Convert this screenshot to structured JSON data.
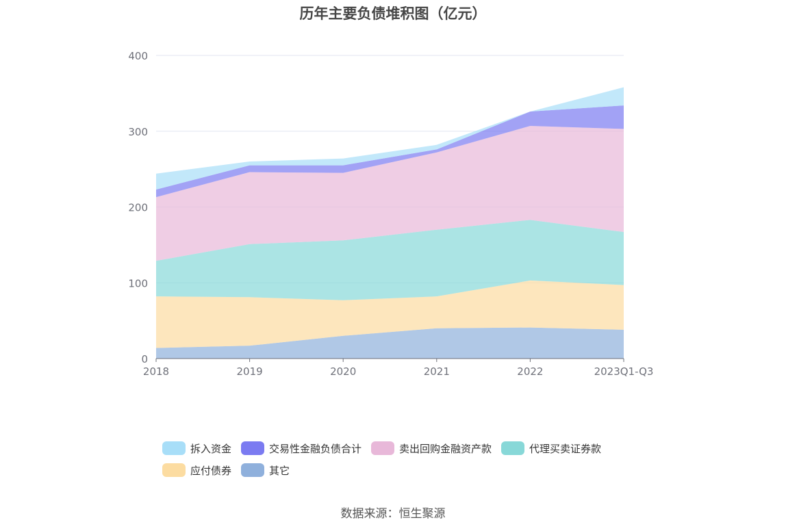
{
  "title": "历年主要负债堆积图（亿元）",
  "source": "数据来源：恒生聚源",
  "chart_data": {
    "type": "area",
    "stacked": true,
    "title": "历年主要负债堆积图（亿元）",
    "categories": [
      "2018",
      "2019",
      "2020",
      "2021",
      "2022",
      "2023Q1-Q3"
    ],
    "ylim": [
      0,
      400
    ],
    "yticks": [
      0,
      100,
      200,
      300,
      400
    ],
    "grid": true,
    "legend_position": "bottom",
    "series": [
      {
        "name": "其它",
        "color": "#8fb0dc",
        "values": [
          14,
          17,
          30,
          40,
          41,
          38
        ]
      },
      {
        "name": "应付债券",
        "color": "#fcdca1",
        "values": [
          68,
          64,
          47,
          42,
          62,
          59
        ]
      },
      {
        "name": "代理买卖证券款",
        "color": "#88d8d8",
        "values": [
          47,
          70,
          79,
          88,
          80,
          70
        ]
      },
      {
        "name": "卖出回购金融资产款",
        "color": "#e8b8d9",
        "values": [
          84,
          95,
          89,
          102,
          124,
          136
        ]
      },
      {
        "name": "交易性金融负债合计",
        "color": "#7b7bf1",
        "values": [
          10,
          9,
          10,
          4,
          19,
          31
        ]
      },
      {
        "name": "拆入资金",
        "color": "#a8def8",
        "values": [
          21,
          5,
          9,
          6,
          0,
          24
        ]
      }
    ]
  },
  "legend": {
    "rows": [
      [
        {
          "label": "拆入资金",
          "color": "#a8def8"
        },
        {
          "label": "交易性金融负债合计",
          "color": "#7b7bf1"
        },
        {
          "label": "卖出回购金融资产款",
          "color": "#e8b8d9"
        },
        {
          "label": "代理买卖证券款",
          "color": "#88d8d8"
        }
      ],
      [
        {
          "label": "应付债券",
          "color": "#fcdca1"
        },
        {
          "label": "其它",
          "color": "#8fb0dc"
        }
      ]
    ]
  }
}
